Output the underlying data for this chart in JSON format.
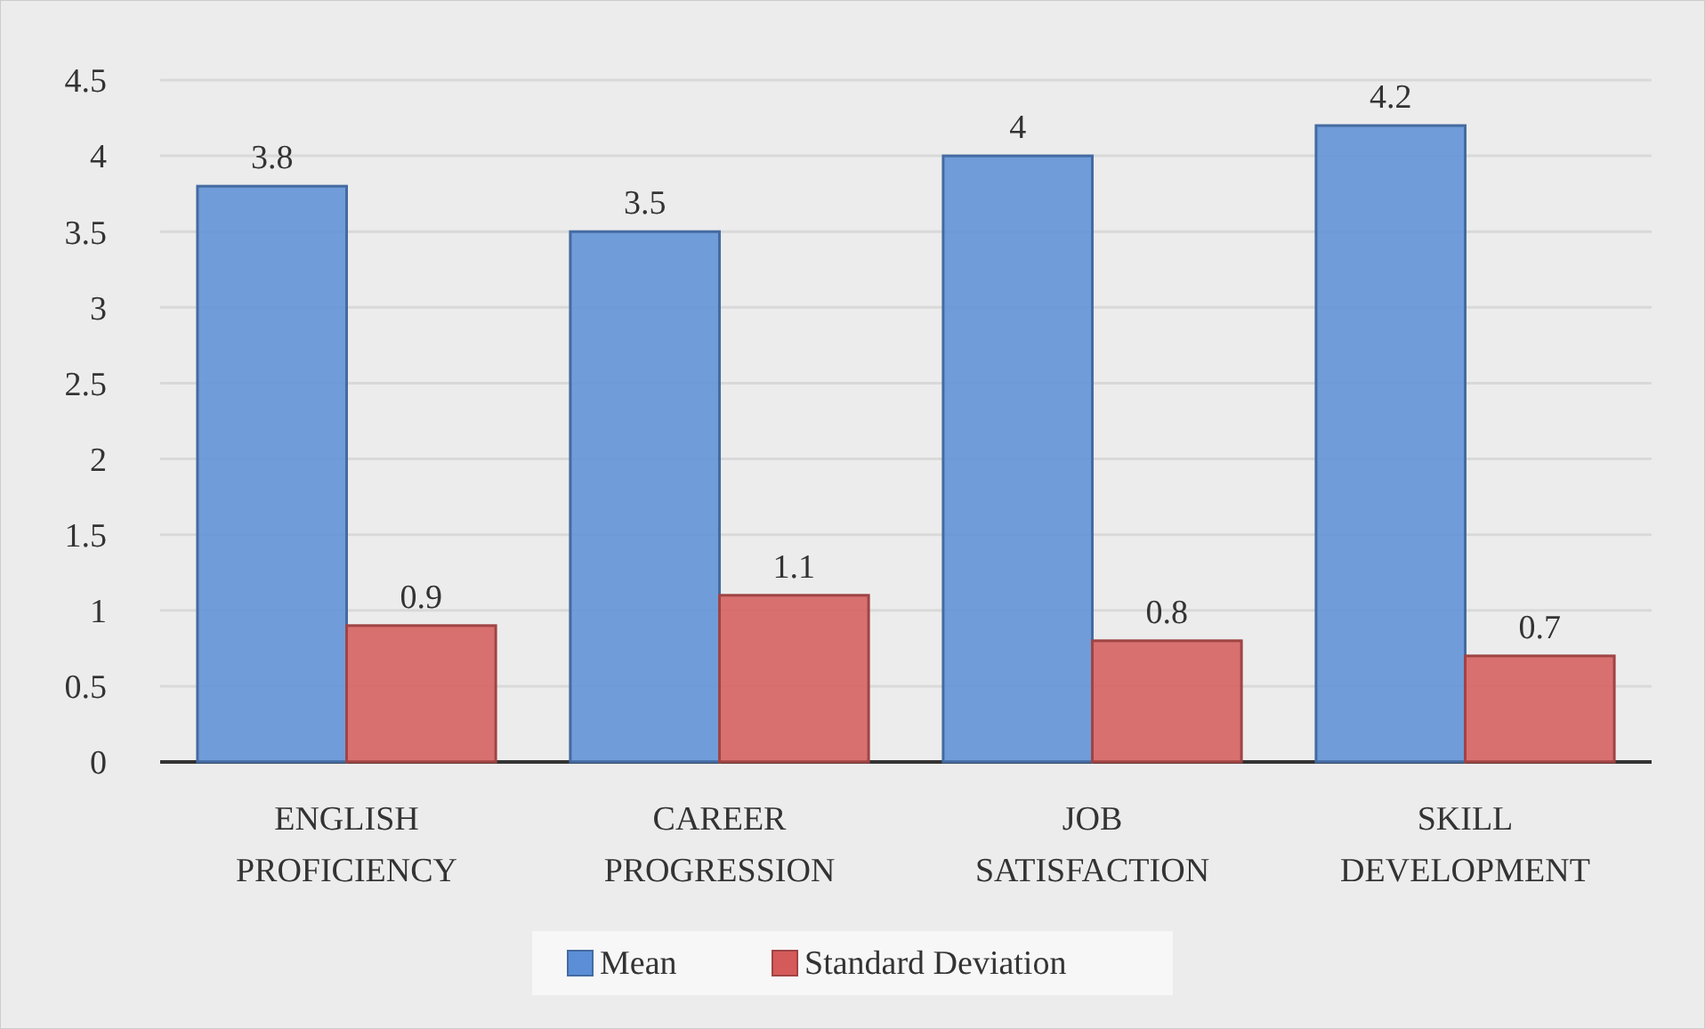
{
  "chart_data": {
    "type": "bar",
    "categories": [
      "ENGLISH PROFICIENCY",
      "CAREER PROGRESSION",
      "JOB SATISFACTION",
      "SKILL DEVELOPMENT"
    ],
    "series": [
      {
        "name": "Mean",
        "color": "#5b8ed6",
        "values": [
          3.8,
          3.5,
          4,
          4.2
        ]
      },
      {
        "name": "Standard Deviation",
        "color": "#d55a5a",
        "values": [
          0.9,
          1.1,
          0.8,
          0.7
        ]
      }
    ],
    "ylim": [
      0,
      4.5
    ],
    "yticks": [
      0,
      0.5,
      1,
      1.5,
      2,
      2.5,
      3,
      3.5,
      4,
      4.5
    ],
    "grid": "y",
    "legend": "bottom",
    "data_labels": true
  }
}
